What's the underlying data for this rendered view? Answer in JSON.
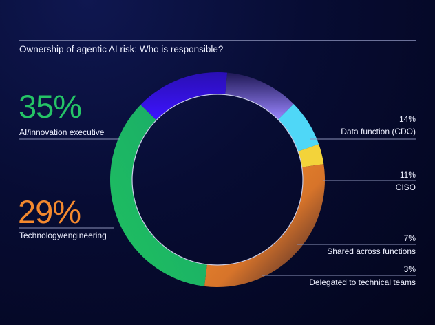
{
  "chart_data": {
    "type": "pie",
    "title": "Ownership of agentic AI risk: Who is responsible?",
    "slices": [
      {
        "label": "AI/innovation executive",
        "value": 35,
        "value_text": "35%",
        "color": "#1fc15f"
      },
      {
        "label": "Data function (CDO)",
        "value": 14,
        "value_text": "14%",
        "color": "#3311e0"
      },
      {
        "label": "CISO",
        "value": 11,
        "value_text": "11%",
        "color": "#8a73ff"
      },
      {
        "label": "Shared across functions",
        "value": 7,
        "value_text": "7%",
        "color": "#4fd7f7"
      },
      {
        "label": "Delegated to technical teams",
        "value": 3,
        "value_text": "3%",
        "color": "#f3d33a"
      },
      {
        "label": "Technology/engineering",
        "value": 29,
        "value_text": "29%",
        "color": "#f28a2e"
      }
    ]
  },
  "colors": {
    "background": "#070c33",
    "rule": "#6b7199"
  }
}
